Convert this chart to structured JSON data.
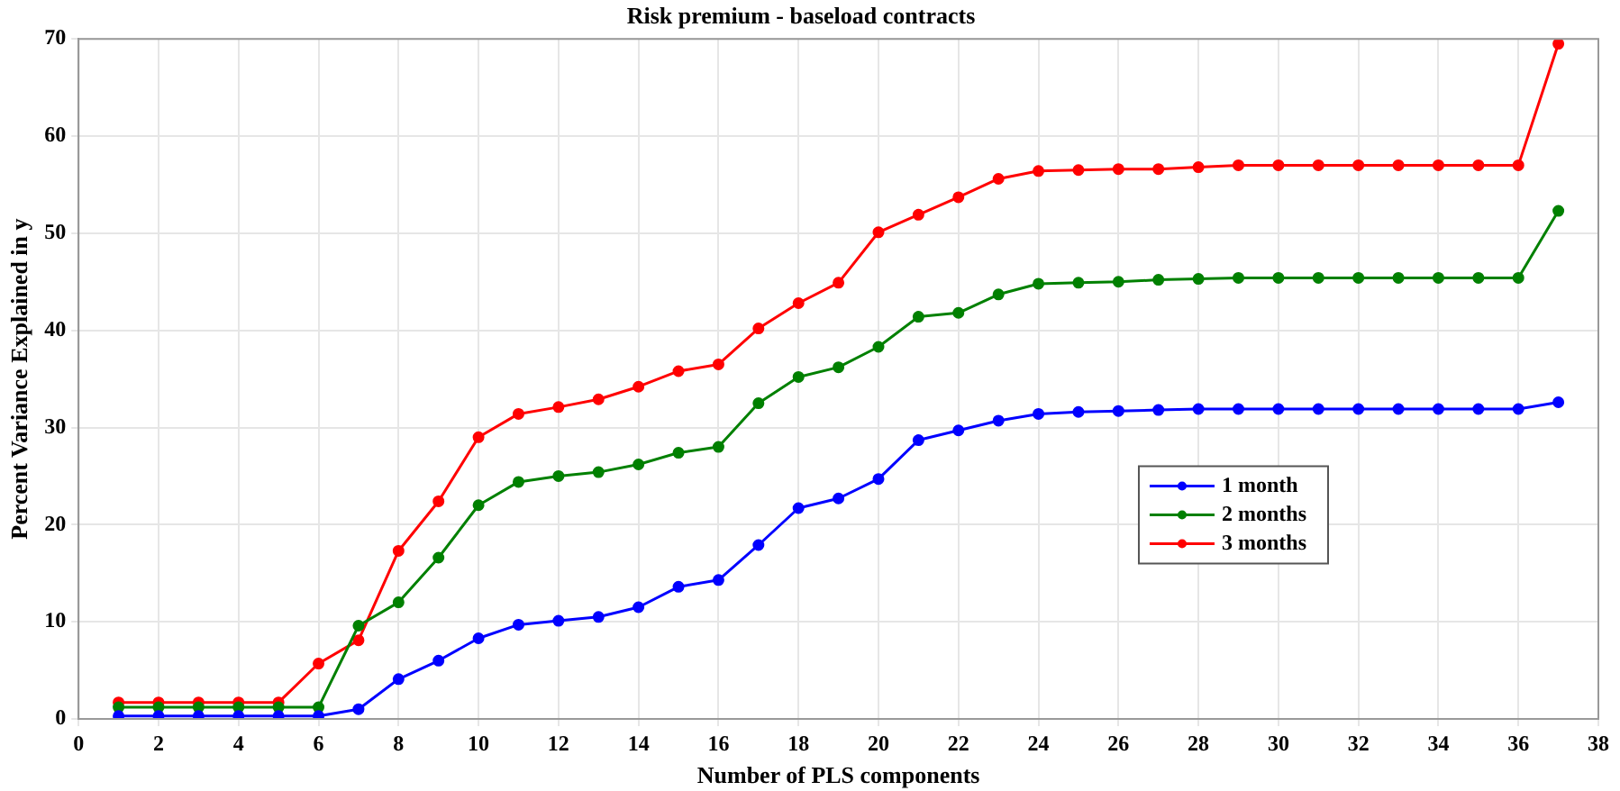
{
  "chart_data": {
    "type": "line",
    "title": "Risk premium - baseload contracts",
    "xlabel": "Number of PLS components",
    "ylabel": "Percent Variance Explained in y",
    "x": [
      1,
      2,
      3,
      4,
      5,
      6,
      7,
      8,
      9,
      10,
      11,
      12,
      13,
      14,
      15,
      16,
      17,
      18,
      19,
      20,
      21,
      22,
      23,
      24,
      25,
      26,
      27,
      28,
      29,
      30,
      31,
      32,
      33,
      34,
      35,
      36,
      37
    ],
    "series": [
      {
        "name": "1 month",
        "color": "#0000ff",
        "values": [
          0.3,
          0.3,
          0.3,
          0.3,
          0.3,
          0.3,
          1.0,
          4.1,
          6.0,
          8.3,
          9.7,
          10.1,
          10.5,
          11.5,
          13.6,
          14.3,
          17.9,
          21.7,
          22.7,
          24.7,
          28.7,
          29.7,
          30.7,
          31.4,
          31.6,
          31.7,
          31.8,
          31.9,
          31.9,
          31.9,
          31.9,
          31.9,
          31.9,
          31.9,
          31.9,
          31.9,
          32.6
        ]
      },
      {
        "name": "2 months",
        "color": "#008000",
        "values": [
          1.2,
          1.2,
          1.2,
          1.2,
          1.2,
          1.2,
          9.6,
          12.0,
          16.6,
          22.0,
          24.4,
          25.0,
          25.4,
          26.2,
          27.4,
          28.0,
          32.5,
          35.2,
          36.2,
          38.3,
          41.4,
          41.8,
          43.7,
          44.8,
          44.9,
          45.0,
          45.2,
          45.3,
          45.4,
          45.4,
          45.4,
          45.4,
          45.4,
          45.4,
          45.4,
          45.4,
          52.3
        ]
      },
      {
        "name": "3 months",
        "color": "#ff0000",
        "values": [
          1.7,
          1.7,
          1.7,
          1.7,
          1.7,
          5.7,
          8.1,
          17.3,
          22.4,
          29.0,
          31.4,
          32.1,
          32.9,
          34.2,
          35.8,
          36.5,
          40.2,
          42.8,
          44.9,
          50.1,
          51.9,
          53.7,
          55.6,
          56.4,
          56.5,
          56.6,
          56.6,
          56.8,
          57.0,
          57.0,
          57.0,
          57.0,
          57.0,
          57.0,
          57.0,
          57.0,
          69.5
        ]
      }
    ],
    "xlim": [
      0,
      38
    ],
    "xticks": [
      0,
      2,
      4,
      6,
      8,
      10,
      12,
      14,
      16,
      18,
      20,
      22,
      24,
      26,
      28,
      30,
      32,
      34,
      36,
      38
    ],
    "ylim": [
      0,
      70
    ],
    "yticks": [
      0,
      10,
      20,
      30,
      40,
      50,
      60,
      70
    ],
    "grid": true,
    "legend": "center right",
    "marker": "circle",
    "line_style": "solid"
  }
}
